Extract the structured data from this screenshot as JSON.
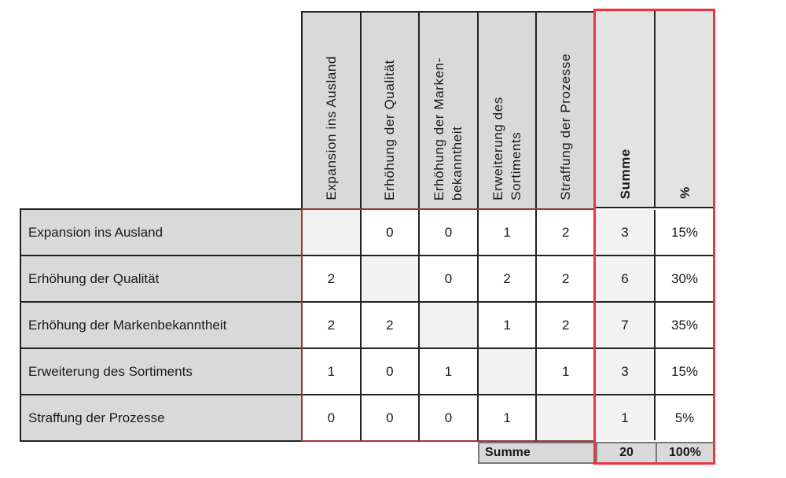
{
  "matrix": {
    "column_headers": [
      "Expansion ins Ausland",
      "Erhöhung der Qualität",
      "Erhöhung der Marken-\nbekanntheit",
      "Erweiterung des\nSortiments",
      "Straffung der Prozesse"
    ],
    "sum_header": "Summe",
    "pct_header": "%",
    "rows": [
      {
        "label": "Expansion ins Ausland",
        "values": [
          null,
          0,
          0,
          1,
          2
        ],
        "sum": "3",
        "pct": "15%"
      },
      {
        "label": "Erhöhung der Qualität",
        "values": [
          2,
          null,
          0,
          2,
          2
        ],
        "sum": "6",
        "pct": "30%"
      },
      {
        "label": "Erhöhung der Markenbekanntheit",
        "values": [
          2,
          2,
          null,
          1,
          2
        ],
        "sum": "7",
        "pct": "35%"
      },
      {
        "label": "Erweiterung des Sortiments",
        "values": [
          1,
          0,
          1,
          null,
          1
        ],
        "sum": "3",
        "pct": "15%"
      },
      {
        "label": "Straffung der Prozesse",
        "values": [
          0,
          0,
          0,
          1,
          null
        ],
        "sum": "1",
        "pct": "5%"
      }
    ],
    "footer": {
      "label": "Summe",
      "total": "20",
      "total_pct": "100%"
    }
  },
  "colors": {
    "grid_line": "#222222",
    "body_outline": "#963634",
    "highlight_outline": "#f3323b",
    "header_bg": "#d9d9d9",
    "summary_header_bg": "#e3e3e3",
    "label_bg": "#d9d9d9",
    "diagonal_bg": "#f2f2f2",
    "sum_col_bg": "#f2f2f2",
    "cell_bg": "#ffffff",
    "footer_bg": "#d9d9d9",
    "footer_line": "#787878",
    "text": "#1a1a1a"
  }
}
